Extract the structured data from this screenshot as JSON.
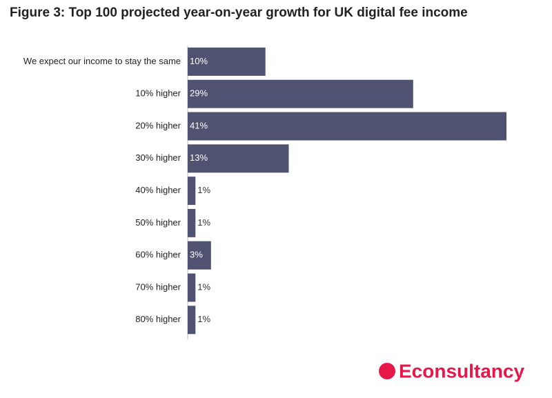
{
  "chart_data": {
    "type": "bar",
    "orientation": "horizontal",
    "title": "Figure 3: Top 100 projected year-on-year growth for UK digital fee income",
    "categories": [
      "We expect our income to stay the same",
      "10% higher",
      "20% higher",
      "30% higher",
      "40% higher",
      "50% higher",
      "60% higher",
      "70% higher",
      "80% higher"
    ],
    "values": [
      10,
      29,
      41,
      13,
      1,
      1,
      3,
      1,
      1
    ],
    "value_labels": [
      "10%",
      "29%",
      "41%",
      "13%",
      "1%",
      "1%",
      "3%",
      "1%",
      "1%"
    ],
    "color": "#4f5270"
  },
  "brand": "Econsultancy"
}
